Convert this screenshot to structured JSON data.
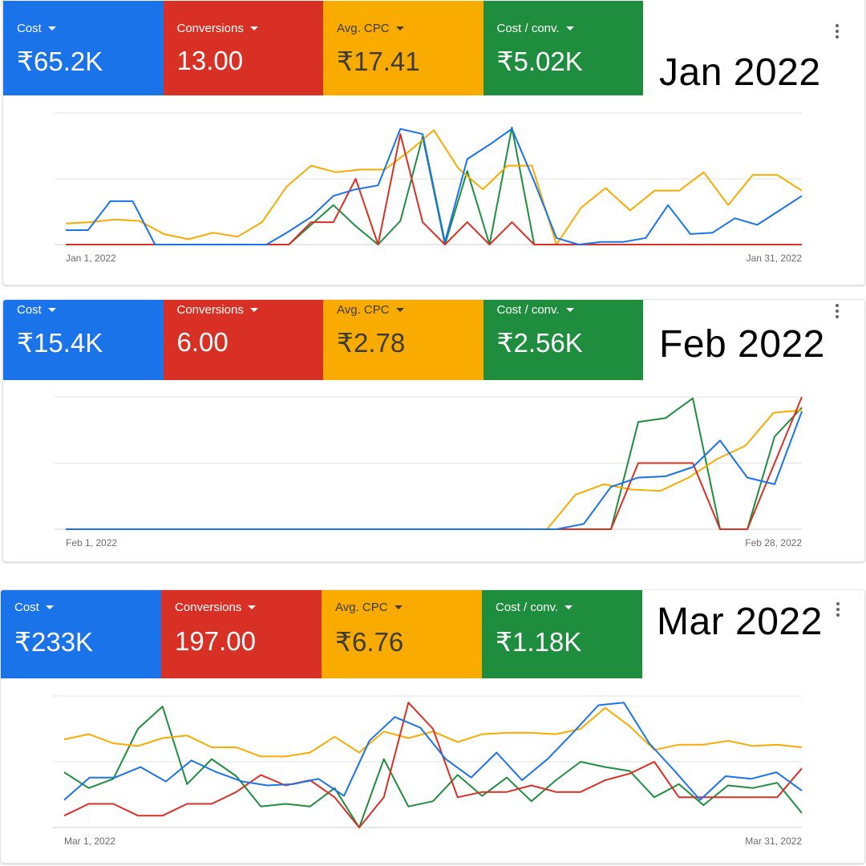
{
  "panels": [
    {
      "month_label": "Jan 2022",
      "tiles": [
        {
          "label": "Cost",
          "value": "₹65.2K",
          "color": "#1a73e8"
        },
        {
          "label": "Conversions",
          "value": "13.00",
          "color": "#d93025"
        },
        {
          "label": "Avg. CPC",
          "value": "₹17.41",
          "color": "#f9ab00"
        },
        {
          "label": "Cost / conv.",
          "value": "₹5.02K",
          "color": "#1e8e3e"
        }
      ],
      "chart_data": {
        "type": "line",
        "x_start_label": "Jan 1, 2022",
        "x_end_label": "Jan 31, 2022",
        "grid": true,
        "ylim": [
          0,
          1
        ],
        "series": [
          {
            "color": "#1a73e8",
            "values": [
              0.11,
              0.11,
              0.33,
              0.33,
              0,
              0,
              0,
              0,
              0,
              0,
              0.1,
              0.21,
              0.37,
              0.42,
              0.45,
              0.88,
              0.84,
              0.02,
              0.65,
              0.76,
              0.88,
              0.48,
              0.05,
              0,
              0.02,
              0.02,
              0.05,
              0.3,
              0.08,
              0.09,
              0.2,
              0.15,
              0.26,
              0.37
            ]
          },
          {
            "color": "#d93025",
            "values": [
              0,
              0,
              0,
              0,
              0,
              0,
              0,
              0,
              0,
              0,
              0,
              0.17,
              0.17,
              0.5,
              0,
              0.84,
              0.17,
              0,
              0.17,
              0,
              0.17,
              0,
              0,
              0,
              0,
              0,
              0,
              0,
              0,
              0,
              0,
              0,
              0,
              0
            ]
          },
          {
            "color": "#f9ab00",
            "values": [
              0.16,
              0.17,
              0.19,
              0.18,
              0.08,
              0.04,
              0.09,
              0.06,
              0.17,
              0.44,
              0.6,
              0.55,
              0.57,
              0.57,
              0.71,
              0.87,
              0.58,
              0.42,
              0.6,
              0.6,
              0,
              0.28,
              0.43,
              0.26,
              0.41,
              0.41,
              0.55,
              0.3,
              0.53,
              0.53,
              0.41
            ]
          },
          {
            "color": "#1e8e3e",
            "values": [
              0,
              0,
              0,
              0,
              0,
              0,
              0,
              0,
              0,
              0,
              0,
              0.15,
              0.3,
              0.14,
              0,
              0.18,
              0.82,
              0,
              0.56,
              0,
              0.89,
              0,
              0,
              0,
              0,
              0,
              0,
              0,
              0,
              0,
              0,
              0,
              0,
              0
            ]
          }
        ]
      }
    },
    {
      "month_label": "Feb 2022",
      "tiles": [
        {
          "label": "Cost",
          "value": "₹15.4K",
          "color": "#1a73e8"
        },
        {
          "label": "Conversions",
          "value": "6.00",
          "color": "#d93025"
        },
        {
          "label": "Avg. CPC",
          "value": "₹2.78",
          "color": "#f9ab00"
        },
        {
          "label": "Cost / conv.",
          "value": "₹2.56K",
          "color": "#1e8e3e"
        }
      ],
      "chart_data": {
        "type": "line",
        "x_start_label": "Feb 1, 2022",
        "x_end_label": "Feb 28, 2022",
        "grid": true,
        "ylim": [
          0,
          1
        ],
        "series": [
          {
            "color": "#1a73e8",
            "values": [
              0,
              0,
              0,
              0,
              0,
              0,
              0,
              0,
              0,
              0,
              0,
              0,
              0,
              0,
              0,
              0,
              0,
              0,
              0,
              0.04,
              0.32,
              0.39,
              0.4,
              0.47,
              0.67,
              0.39,
              0.34,
              0.89
            ]
          },
          {
            "color": "#d93025",
            "values": [
              0,
              0,
              0,
              0,
              0,
              0,
              0,
              0,
              0,
              0,
              0,
              0,
              0,
              0,
              0,
              0,
              0,
              0,
              0,
              0,
              0,
              0.5,
              0.5,
              0.5,
              0,
              0,
              0.5,
              1
            ]
          },
          {
            "color": "#f9ab00",
            "values": [
              0,
              0,
              0,
              0,
              0,
              0,
              0,
              0,
              0,
              0,
              0,
              0,
              0,
              0,
              0,
              0,
              0,
              0,
              0.26,
              0.34,
              0.3,
              0.29,
              0.39,
              0.53,
              0.63,
              0.88,
              0.9
            ]
          },
          {
            "color": "#1e8e3e",
            "values": [
              0,
              0,
              0,
              0,
              0,
              0,
              0,
              0,
              0,
              0,
              0,
              0,
              0,
              0,
              0,
              0,
              0,
              0,
              0,
              0,
              0,
              0.81,
              0.84,
              0.99,
              0,
              0,
              0.7,
              0.92
            ]
          }
        ]
      }
    },
    {
      "month_label": "Mar 2022",
      "tiles": [
        {
          "label": "Cost",
          "value": "₹233K",
          "color": "#1a73e8"
        },
        {
          "label": "Conversions",
          "value": "197.00",
          "color": "#d93025"
        },
        {
          "label": "Avg. CPC",
          "value": "₹6.76",
          "color": "#f9ab00"
        },
        {
          "label": "Cost / conv.",
          "value": "₹1.18K",
          "color": "#1e8e3e"
        }
      ],
      "chart_data": {
        "type": "line",
        "x_start_label": "Mar 1, 2022",
        "x_end_label": "Mar 31, 2022",
        "grid": true,
        "ylim": [
          0,
          1
        ],
        "series": [
          {
            "color": "#1a73e8",
            "values": [
              0.21,
              0.38,
              0.38,
              0.46,
              0.35,
              0.51,
              0.42,
              0.35,
              0.32,
              0.33,
              0.37,
              0.24,
              0.66,
              0.84,
              0.76,
              0.52,
              0.38,
              0.57,
              0.36,
              0.52,
              0.72,
              0.93,
              0.95,
              0.64,
              0.43,
              0.21,
              0.39,
              0.37,
              0.42,
              0.28
            ]
          },
          {
            "color": "#d93025",
            "values": [
              0.09,
              0.18,
              0.18,
              0.09,
              0.09,
              0.18,
              0.18,
              0.27,
              0.4,
              0.32,
              0.36,
              0.23,
              0,
              0.23,
              0.95,
              0.75,
              0.23,
              0.27,
              0.27,
              0.32,
              0.27,
              0.27,
              0.36,
              0.41,
              0.5,
              0.23,
              0.23,
              0.23,
              0.23,
              0.23,
              0.45
            ]
          },
          {
            "color": "#f9ab00",
            "values": [
              0.67,
              0.71,
              0.64,
              0.62,
              0.68,
              0.7,
              0.61,
              0.61,
              0.54,
              0.54,
              0.57,
              0.69,
              0.57,
              0.73,
              0.68,
              0.73,
              0.65,
              0.71,
              0.72,
              0.72,
              0.71,
              0.75,
              0.91,
              0.77,
              0.59,
              0.63,
              0.63,
              0.66,
              0.62,
              0.63,
              0.61
            ]
          },
          {
            "color": "#1e8e3e",
            "values": [
              0.42,
              0.3,
              0.37,
              0.75,
              0.92,
              0.33,
              0.52,
              0.39,
              0.16,
              0.18,
              0.16,
              0.3,
              0,
              0.52,
              0.16,
              0.2,
              0.4,
              0.24,
              0.38,
              0.2,
              0.36,
              0.5,
              0.46,
              0.43,
              0.23,
              0.33,
              0.17,
              0.32,
              0.3,
              0.34,
              0.11
            ]
          }
        ]
      }
    }
  ]
}
